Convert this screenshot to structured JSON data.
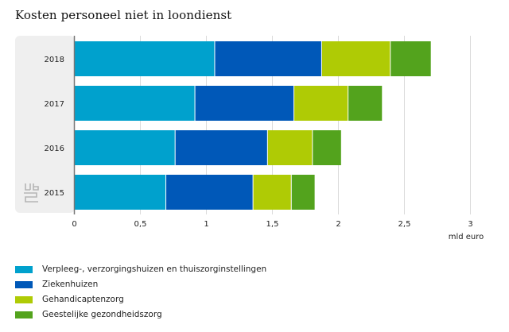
{
  "title": "Kosten personeel niet in loondienst",
  "chart_data": {
    "type": "bar",
    "orientation": "horizontal",
    "stacked": true,
    "title": "Kosten personeel niet in loondienst",
    "categories": [
      "2018",
      "2017",
      "2016",
      "2015"
    ],
    "series": [
      {
        "name": "Verpleeg-, verzorgingshuizen en thuiszorginstellingen",
        "color": "#00a1cd",
        "values": [
          1.06,
          0.91,
          0.76,
          0.69
        ]
      },
      {
        "name": "Ziekenhuizen",
        "color": "#0058b8",
        "values": [
          0.81,
          0.75,
          0.7,
          0.66
        ]
      },
      {
        "name": "Gehandicaptenzorg",
        "color": "#afcb05",
        "values": [
          0.52,
          0.41,
          0.34,
          0.29
        ]
      },
      {
        "name": "Geestelijke gezondheidszorg",
        "color": "#53a31d",
        "values": [
          0.31,
          0.26,
          0.22,
          0.18
        ]
      }
    ],
    "xlabel": "mld euro",
    "ylabel": "",
    "xlim": [
      0,
      3
    ],
    "xticks": [
      0,
      0.5,
      1,
      1.5,
      2,
      2.5,
      3
    ],
    "xtick_labels": [
      "0",
      "0,5",
      "1",
      "1,5",
      "2",
      "2,5",
      "3"
    ],
    "grid": true,
    "legend_position": "bottom-left"
  },
  "logo": "cbs-logo-icon"
}
